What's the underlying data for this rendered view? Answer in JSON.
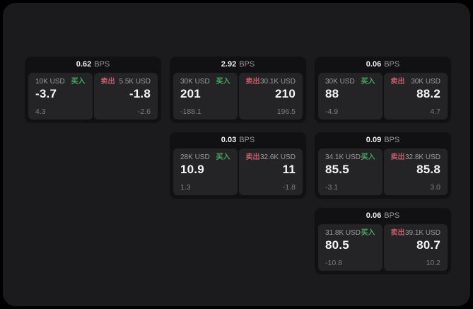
{
  "colors": {
    "background": "#000000",
    "panel_background": "#1b1b1d",
    "card_background": "#111113",
    "tile_background": "#242427",
    "buy": "#4aa663",
    "sell": "#c75a6b",
    "value_text": "#f4f4f4",
    "muted_text": "#9c9c9f"
  },
  "cards": [
    {
      "row": 1,
      "col": 1,
      "bps_value": "0.62",
      "bps_unit": "BPS",
      "buy": {
        "amount": "10K USD",
        "label": "买入",
        "price": "-3.7",
        "delta": "4.3"
      },
      "sell": {
        "label": "卖出",
        "amount": "5.5K USD",
        "price": "-1.8",
        "delta": "-2.6"
      }
    },
    {
      "row": 1,
      "col": 2,
      "bps_value": "2.92",
      "bps_unit": "BPS",
      "buy": {
        "amount": "30K USD",
        "label": "买入",
        "price": "201",
        "delta": "-188.1"
      },
      "sell": {
        "label": "卖出",
        "amount": "30.1K USD",
        "price": "210",
        "delta": "196.5"
      }
    },
    {
      "row": 1,
      "col": 3,
      "bps_value": "0.06",
      "bps_unit": "BPS",
      "buy": {
        "amount": "30K USD",
        "label": "买入",
        "price": "88",
        "delta": "-4.9"
      },
      "sell": {
        "label": "卖出",
        "amount": "30K USD",
        "price": "88.2",
        "delta": "4.7"
      }
    },
    {
      "row": 2,
      "col": 2,
      "bps_value": "0.03",
      "bps_unit": "BPS",
      "buy": {
        "amount": "28K USD",
        "label": "买入",
        "price": "10.9",
        "delta": "1.3"
      },
      "sell": {
        "label": "卖出",
        "amount": "32.6K USD",
        "price": "11",
        "delta": "-1.8"
      }
    },
    {
      "row": 2,
      "col": 3,
      "bps_value": "0.09",
      "bps_unit": "BPS",
      "buy": {
        "amount": "34.1K USD",
        "label": "买入",
        "price": "85.5",
        "delta": "-3.1"
      },
      "sell": {
        "label": "卖出",
        "amount": "32.8K USD",
        "price": "85.8",
        "delta": "3.0"
      }
    },
    {
      "row": 3,
      "col": 3,
      "bps_value": "0.06",
      "bps_unit": "BPS",
      "buy": {
        "amount": "31.8K USD",
        "label": "买入",
        "price": "80.5",
        "delta": "-10.8"
      },
      "sell": {
        "label": "卖出",
        "amount": "39.1K USD",
        "price": "80.7",
        "delta": "10.2"
      }
    }
  ]
}
